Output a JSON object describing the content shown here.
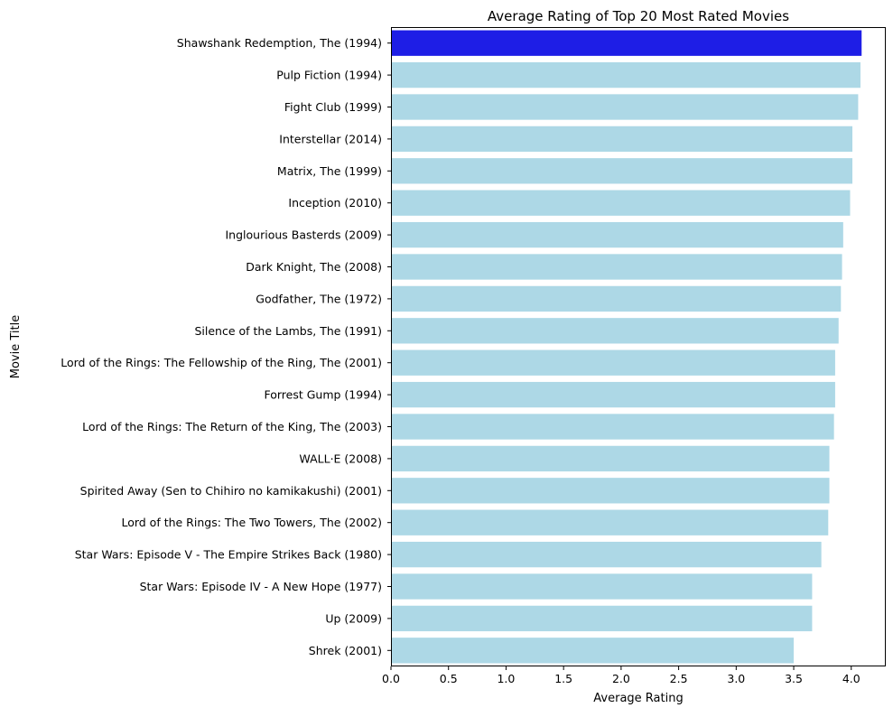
{
  "chart_data": {
    "type": "bar",
    "orientation": "horizontal",
    "title": "Average Rating of Top 20 Most Rated Movies",
    "xlabel": "Average Rating",
    "ylabel": "Movie Title",
    "xlim": [
      0,
      4.3
    ],
    "xticks": [
      "0.0",
      "0.5",
      "1.0",
      "1.5",
      "2.0",
      "2.5",
      "3.0",
      "3.5",
      "4.0"
    ],
    "grid": false,
    "colors": {
      "highlight": "#1e1ee6",
      "default": "#add8e6"
    },
    "categories": [
      "Shawshank Redemption, The (1994)",
      "Pulp Fiction (1994)",
      "Fight Club (1999)",
      "Interstellar (2014)",
      "Matrix, The (1999)",
      "Inception (2010)",
      "Inglourious Basterds (2009)",
      "Dark Knight, The (2008)",
      "Godfather, The (1972)",
      "Silence of the Lambs, The (1991)",
      "Lord of the Rings: The Fellowship of the Ring, The (2001)",
      "Forrest Gump (1994)",
      "Lord of the Rings: The Return of the King, The (2003)",
      "WALL·E (2008)",
      "Spirited Away (Sen to Chihiro no kamikakushi) (2001)",
      "Lord of the Rings: The Two Towers, The (2002)",
      "Star Wars: Episode V - The Empire Strikes Back (1980)",
      "Star Wars: Episode IV - A New Hope (1977)",
      "Up (2009)",
      "Shrek (2001)"
    ],
    "values": [
      4.09,
      4.08,
      4.06,
      4.01,
      4.01,
      3.99,
      3.93,
      3.92,
      3.91,
      3.89,
      3.86,
      3.86,
      3.85,
      3.81,
      3.81,
      3.8,
      3.74,
      3.66,
      3.66,
      3.5
    ],
    "highlight_index": 0
  }
}
